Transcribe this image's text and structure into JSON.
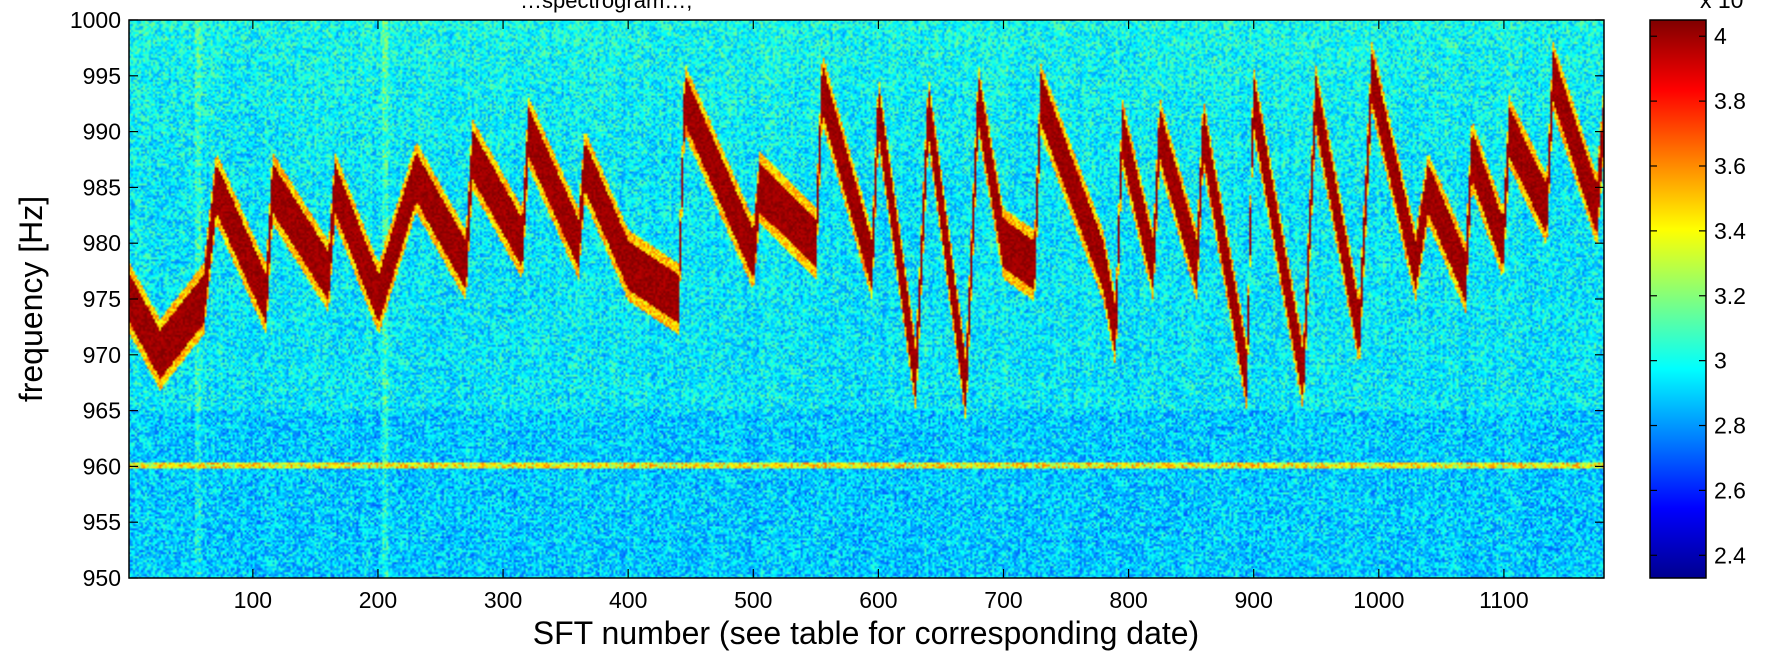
{
  "chart_data": {
    "type": "heatmap",
    "title": "…spectrogram…,",
    "xlabel": "SFT number (see table for corresponding date)",
    "ylabel": "frequency [Hz]",
    "xlim": [
      1,
      1180
    ],
    "ylim": [
      950,
      1000
    ],
    "xticks": [
      100,
      200,
      300,
      400,
      500,
      600,
      700,
      800,
      900,
      1000,
      1100
    ],
    "yticks": [
      950,
      955,
      960,
      965,
      970,
      975,
      980,
      985,
      990,
      995,
      1000
    ],
    "colormap": "jet",
    "colorbar": {
      "min": 2.33,
      "max": 4.05,
      "ticks": [
        2.4,
        2.6,
        2.8,
        3,
        3.2,
        3.4,
        3.6,
        3.8,
        4
      ],
      "exponent_label": "x 10"
    },
    "background_level": 2.95,
    "line_level": 4.0,
    "features": {
      "wandering_line_track": [
        {
          "sft": 1,
          "freq": 975
        },
        {
          "sft": 25,
          "freq": 970
        },
        {
          "sft": 60,
          "freq": 975
        },
        {
          "sft": 70,
          "freq": 985
        },
        {
          "sft": 110,
          "freq": 975
        },
        {
          "sft": 115,
          "freq": 985
        },
        {
          "sft": 160,
          "freq": 977
        },
        {
          "sft": 165,
          "freq": 985
        },
        {
          "sft": 200,
          "freq": 975
        },
        {
          "sft": 230,
          "freq": 986
        },
        {
          "sft": 270,
          "freq": 978
        },
        {
          "sft": 275,
          "freq": 988
        },
        {
          "sft": 315,
          "freq": 980
        },
        {
          "sft": 320,
          "freq": 990
        },
        {
          "sft": 360,
          "freq": 980
        },
        {
          "sft": 365,
          "freq": 987
        },
        {
          "sft": 400,
          "freq": 978
        },
        {
          "sft": 440,
          "freq": 975
        },
        {
          "sft": 445,
          "freq": 993
        },
        {
          "sft": 500,
          "freq": 979
        },
        {
          "sft": 505,
          "freq": 985
        },
        {
          "sft": 550,
          "freq": 980
        },
        {
          "sft": 555,
          "freq": 994
        },
        {
          "sft": 595,
          "freq": 978
        },
        {
          "sft": 600,
          "freq": 992
        },
        {
          "sft": 630,
          "freq": 968
        },
        {
          "sft": 640,
          "freq": 992
        },
        {
          "sft": 670,
          "freq": 967
        },
        {
          "sft": 680,
          "freq": 993
        },
        {
          "sft": 700,
          "freq": 980
        },
        {
          "sft": 725,
          "freq": 978
        },
        {
          "sft": 730,
          "freq": 993
        },
        {
          "sft": 780,
          "freq": 978
        },
        {
          "sft": 790,
          "freq": 972
        },
        {
          "sft": 795,
          "freq": 990
        },
        {
          "sft": 820,
          "freq": 978
        },
        {
          "sft": 825,
          "freq": 990
        },
        {
          "sft": 855,
          "freq": 978
        },
        {
          "sft": 860,
          "freq": 990
        },
        {
          "sft": 895,
          "freq": 968
        },
        {
          "sft": 900,
          "freq": 993
        },
        {
          "sft": 940,
          "freq": 968
        },
        {
          "sft": 950,
          "freq": 993
        },
        {
          "sft": 985,
          "freq": 972
        },
        {
          "sft": 995,
          "freq": 995
        },
        {
          "sft": 1030,
          "freq": 978
        },
        {
          "sft": 1040,
          "freq": 985
        },
        {
          "sft": 1070,
          "freq": 977
        },
        {
          "sft": 1075,
          "freq": 988
        },
        {
          "sft": 1100,
          "freq": 980
        },
        {
          "sft": 1105,
          "freq": 990
        },
        {
          "sft": 1135,
          "freq": 983
        },
        {
          "sft": 1140,
          "freq": 995
        },
        {
          "sft": 1175,
          "freq": 983
        },
        {
          "sft": 1180,
          "freq": 990
        }
      ],
      "stationary_line_freq": 960,
      "bright_columns_sft": [
        55,
        205
      ]
    }
  }
}
